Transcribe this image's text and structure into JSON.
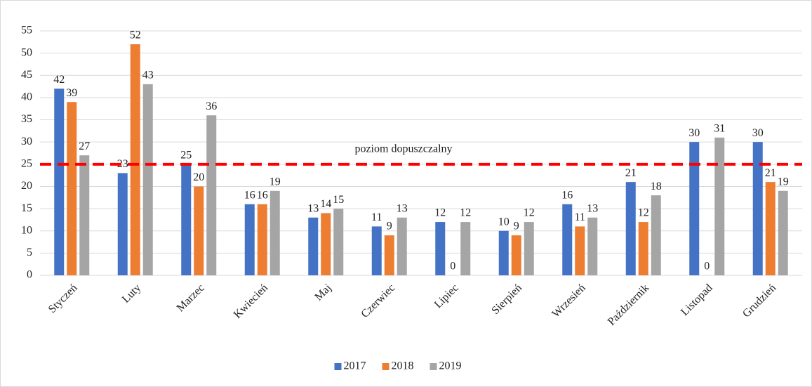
{
  "chart_data": {
    "type": "bar",
    "categories": [
      "Styczeń",
      "Luty",
      "Marzec",
      "Kwiecień",
      "Maj",
      "Czerwiec",
      "Lipiec",
      "Sierpień",
      "Wrzesień",
      "Październik",
      "Listopad",
      "Grudzień"
    ],
    "series": [
      {
        "name": "2017",
        "color": "#4472c4",
        "values": [
          42,
          23,
          25,
          16,
          13,
          11,
          12,
          10,
          16,
          21,
          30,
          30
        ]
      },
      {
        "name": "2018",
        "color": "#ed7d31",
        "values": [
          39,
          52,
          20,
          16,
          14,
          9,
          0,
          9,
          11,
          12,
          0,
          21
        ]
      },
      {
        "name": "2019",
        "color": "#a5a5a5",
        "values": [
          27,
          43,
          36,
          19,
          15,
          13,
          12,
          12,
          13,
          18,
          31,
          19
        ]
      }
    ],
    "threshold": {
      "value": 25,
      "label": "poziom dopuszczalny",
      "color": "#ff0000"
    },
    "ylim": [
      0,
      55
    ],
    "yticks": [
      0,
      5,
      10,
      15,
      20,
      25,
      30,
      35,
      40,
      45,
      50,
      55
    ],
    "grid": true,
    "legend": "bottom"
  }
}
